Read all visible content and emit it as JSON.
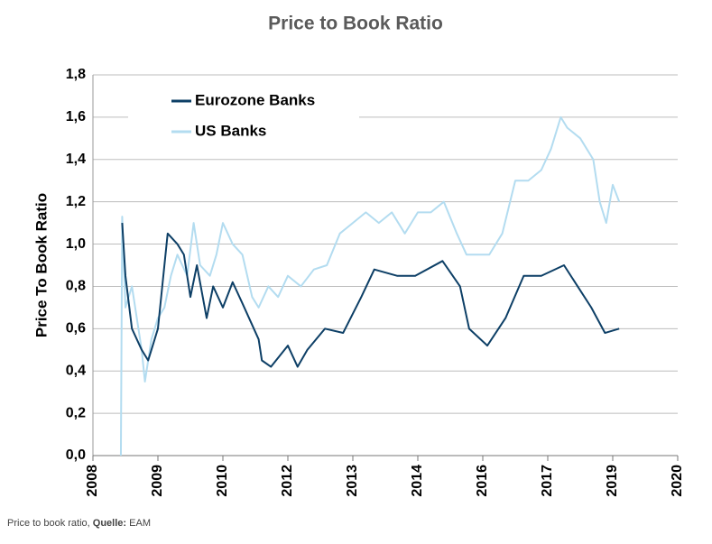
{
  "chart_data": {
    "type": "line",
    "title": "Price to Book Ratio",
    "ylabel": "Price To Book Ratio",
    "ylim": [
      0,
      1.8
    ],
    "yticks": [
      {
        "value": 0,
        "label": "0,0"
      },
      {
        "value": 0.2,
        "label": "0,2"
      },
      {
        "value": 0.4,
        "label": "0,4"
      },
      {
        "value": 0.6,
        "label": "0,6"
      },
      {
        "value": 0.8,
        "label": "0,8"
      },
      {
        "value": 1,
        "label": "1,0"
      },
      {
        "value": 1.2,
        "label": "1,2"
      },
      {
        "value": 1.4,
        "label": "1,4"
      },
      {
        "value": 1.6,
        "label": "1,6"
      },
      {
        "value": 1.8,
        "label": "1,8"
      }
    ],
    "xlim": [
      0,
      9
    ],
    "xticks": [
      {
        "value": 0,
        "label": "2008"
      },
      {
        "value": 1,
        "label": "2009"
      },
      {
        "value": 2,
        "label": "2010"
      },
      {
        "value": 3,
        "label": "2012"
      },
      {
        "value": 4,
        "label": "2013"
      },
      {
        "value": 5,
        "label": "2014"
      },
      {
        "value": 6,
        "label": "2016"
      },
      {
        "value": 7,
        "label": "2017"
      },
      {
        "value": 8,
        "label": "2019"
      },
      {
        "value": 9,
        "label": "2020"
      }
    ],
    "grid": true,
    "legend": "upper left",
    "series": [
      {
        "name": "Eurozone Banks",
        "color": "#0d3f66",
        "x": [
          0.45,
          0.5,
          0.6,
          0.75,
          0.85,
          1.0,
          1.05,
          1.1,
          1.15,
          1.3,
          1.4,
          1.5,
          1.6,
          1.75,
          1.85,
          2.0,
          2.15,
          2.3,
          2.55,
          2.6,
          2.74,
          3.0,
          3.15,
          3.3,
          3.57,
          3.85,
          4.13,
          4.33,
          4.68,
          4.96,
          5.38,
          5.65,
          5.79,
          6.07,
          6.35,
          6.63,
          6.9,
          7.25,
          7.46,
          7.67,
          7.88,
          8.1
        ],
        "values": [
          1.1,
          0.85,
          0.6,
          0.5,
          0.45,
          0.6,
          0.75,
          0.9,
          1.05,
          1.0,
          0.95,
          0.75,
          0.9,
          0.65,
          0.8,
          0.7,
          0.82,
          0.72,
          0.55,
          0.45,
          0.42,
          0.52,
          0.42,
          0.5,
          0.6,
          0.58,
          0.75,
          0.88,
          0.85,
          0.85,
          0.92,
          0.8,
          0.6,
          0.52,
          0.65,
          0.85,
          0.85,
          0.9,
          0.8,
          0.7,
          0.58,
          0.6
        ]
      },
      {
        "name": "US Banks",
        "color": "#b3dcf0",
        "x": [
          0.43,
          0.45,
          0.5,
          0.6,
          0.75,
          0.8,
          0.9,
          1.0,
          1.1,
          1.2,
          1.3,
          1.45,
          1.55,
          1.65,
          1.8,
          1.9,
          2.0,
          2.15,
          2.3,
          2.45,
          2.55,
          2.7,
          2.85,
          3.0,
          3.2,
          3.4,
          3.6,
          3.8,
          4.0,
          4.2,
          4.4,
          4.6,
          4.8,
          5.0,
          5.2,
          5.4,
          5.6,
          5.75,
          5.9,
          6.1,
          6.3,
          6.5,
          6.7,
          6.9,
          7.05,
          7.2,
          7.3,
          7.5,
          7.7,
          7.8,
          7.9,
          8.0,
          8.1
        ],
        "values": [
          0.0,
          1.13,
          0.7,
          0.8,
          0.5,
          0.35,
          0.55,
          0.65,
          0.7,
          0.85,
          0.95,
          0.85,
          1.1,
          0.9,
          0.85,
          0.95,
          1.1,
          1.0,
          0.95,
          0.75,
          0.7,
          0.8,
          0.75,
          0.85,
          0.8,
          0.88,
          0.9,
          1.05,
          1.1,
          1.15,
          1.1,
          1.15,
          1.05,
          1.15,
          1.15,
          1.2,
          1.05,
          0.95,
          0.95,
          0.95,
          1.05,
          1.3,
          1.3,
          1.35,
          1.45,
          1.6,
          1.55,
          1.5,
          1.4,
          1.2,
          1.1,
          1.28,
          1.2
        ]
      }
    ]
  },
  "caption": {
    "text": "Price to book ratio, ",
    "source_label": "Quelle:",
    "source": "EAM"
  }
}
